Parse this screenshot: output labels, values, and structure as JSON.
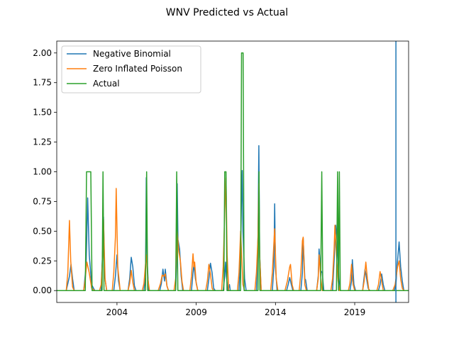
{
  "chart_data": {
    "type": "line",
    "title": "WNV Predicted vs Actual",
    "xlabel": "",
    "ylabel": "",
    "xlim": [
      2000.2,
      2022.4
    ],
    "ylim": [
      -0.1,
      2.1
    ],
    "grid": false,
    "legend_position": "top-left",
    "x_ticks": [
      2004,
      2009,
      2014,
      2019
    ],
    "x_tick_labels": [
      "2004",
      "2009",
      "2014",
      "2019"
    ],
    "y_ticks": [
      0.0,
      0.25,
      0.5,
      0.75,
      1.0,
      1.25,
      1.5,
      1.75,
      2.0
    ],
    "y_tick_labels": [
      "0.00",
      "0.25",
      "0.50",
      "0.75",
      "1.00",
      "1.25",
      "1.50",
      "1.75",
      "2.00"
    ],
    "vline": {
      "x": 2021.6,
      "color": "#1f77b4"
    },
    "series": [
      {
        "name": "Negative Binomial",
        "color": "#1f77b4",
        "points": [
          [
            2000.2,
            0.0
          ],
          [
            2000.8,
            0.0
          ],
          [
            2001.0,
            0.12
          ],
          [
            2001.1,
            0.22
          ],
          [
            2001.2,
            0.1
          ],
          [
            2001.3,
            0.0
          ],
          [
            2001.9,
            0.0
          ],
          [
            2002.05,
            0.2
          ],
          [
            2002.15,
            0.78
          ],
          [
            2002.25,
            0.3
          ],
          [
            2002.4,
            0.05
          ],
          [
            2002.6,
            0.0
          ],
          [
            2003.0,
            0.0
          ],
          [
            2003.1,
            0.35
          ],
          [
            2003.15,
            0.62
          ],
          [
            2003.22,
            0.12
          ],
          [
            2003.35,
            0.0
          ],
          [
            2003.8,
            0.0
          ],
          [
            2003.9,
            0.12
          ],
          [
            2004.0,
            0.3
          ],
          [
            2004.1,
            0.08
          ],
          [
            2004.2,
            0.0
          ],
          [
            2004.7,
            0.0
          ],
          [
            2004.8,
            0.1
          ],
          [
            2004.9,
            0.28
          ],
          [
            2005.0,
            0.2
          ],
          [
            2005.1,
            0.04
          ],
          [
            2005.2,
            0.0
          ],
          [
            2005.7,
            0.0
          ],
          [
            2005.8,
            0.12
          ],
          [
            2005.85,
            0.95
          ],
          [
            2005.9,
            0.25
          ],
          [
            2006.0,
            0.0
          ],
          [
            2006.7,
            0.0
          ],
          [
            2006.8,
            0.06
          ],
          [
            2006.9,
            0.18
          ],
          [
            2007.0,
            0.08
          ],
          [
            2007.05,
            0.18
          ],
          [
            2007.15,
            0.04
          ],
          [
            2007.25,
            0.0
          ],
          [
            2007.7,
            0.0
          ],
          [
            2007.75,
            0.2
          ],
          [
            2007.8,
            0.9
          ],
          [
            2007.85,
            0.43
          ],
          [
            2007.95,
            0.35
          ],
          [
            2008.05,
            0.12
          ],
          [
            2008.15,
            0.0
          ],
          [
            2008.7,
            0.0
          ],
          [
            2008.8,
            0.15
          ],
          [
            2008.85,
            0.22
          ],
          [
            2008.95,
            0.1
          ],
          [
            2009.1,
            0.0
          ],
          [
            2009.7,
            0.0
          ],
          [
            2009.8,
            0.1
          ],
          [
            2009.9,
            0.23
          ],
          [
            2010.0,
            0.15
          ],
          [
            2010.1,
            0.02
          ],
          [
            2010.2,
            0.0
          ],
          [
            2010.7,
            0.0
          ],
          [
            2010.8,
            0.12
          ],
          [
            2010.85,
            0.24
          ],
          [
            2010.9,
            0.12
          ],
          [
            2011.0,
            0.0
          ],
          [
            2011.1,
            0.05
          ],
          [
            2011.15,
            0.0
          ],
          [
            2011.7,
            0.0
          ],
          [
            2011.8,
            0.3
          ],
          [
            2011.85,
            0.72
          ],
          [
            2011.9,
            1.01
          ],
          [
            2011.95,
            0.5
          ],
          [
            2012.05,
            0.1
          ],
          [
            2012.15,
            0.0
          ],
          [
            2012.8,
            0.0
          ],
          [
            2012.9,
            0.45
          ],
          [
            2012.95,
            1.22
          ],
          [
            2013.0,
            0.3
          ],
          [
            2013.1,
            0.0
          ],
          [
            2013.8,
            0.0
          ],
          [
            2013.9,
            0.2
          ],
          [
            2013.95,
            0.73
          ],
          [
            2014.0,
            0.2
          ],
          [
            2014.1,
            0.0
          ],
          [
            2014.7,
            0.0
          ],
          [
            2014.8,
            0.05
          ],
          [
            2014.9,
            0.11
          ],
          [
            2015.0,
            0.05
          ],
          [
            2015.1,
            0.0
          ],
          [
            2015.6,
            0.0
          ],
          [
            2015.7,
            0.15
          ],
          [
            2015.75,
            0.44
          ],
          [
            2015.85,
            0.1
          ],
          [
            2015.9,
            0.09
          ],
          [
            2016.0,
            0.0
          ],
          [
            2016.6,
            0.0
          ],
          [
            2016.7,
            0.12
          ],
          [
            2016.75,
            0.35
          ],
          [
            2016.85,
            0.17
          ],
          [
            2016.95,
            0.15
          ],
          [
            2017.05,
            0.0
          ],
          [
            2017.6,
            0.0
          ],
          [
            2017.7,
            0.25
          ],
          [
            2017.8,
            0.55
          ],
          [
            2017.9,
            0.4
          ],
          [
            2018.0,
            0.1
          ],
          [
            2018.1,
            0.0
          ],
          [
            2018.7,
            0.0
          ],
          [
            2018.8,
            0.08
          ],
          [
            2018.85,
            0.26
          ],
          [
            2018.95,
            0.05
          ],
          [
            2019.05,
            0.0
          ],
          [
            2019.5,
            0.0
          ],
          [
            2019.55,
            0.06
          ],
          [
            2019.65,
            0.18
          ],
          [
            2019.75,
            0.1
          ],
          [
            2019.85,
            0.02
          ],
          [
            2019.95,
            0.0
          ],
          [
            2020.5,
            0.0
          ],
          [
            2020.6,
            0.05
          ],
          [
            2020.7,
            0.14
          ],
          [
            2020.8,
            0.05
          ],
          [
            2020.9,
            0.0
          ],
          [
            2021.5,
            0.0
          ],
          [
            2021.6,
            0.05
          ],
          [
            2021.7,
            0.25
          ],
          [
            2021.8,
            0.41
          ],
          [
            2021.9,
            0.2
          ],
          [
            2022.0,
            0.08
          ],
          [
            2022.1,
            0.0
          ],
          [
            2022.4,
            0.0
          ]
        ]
      },
      {
        "name": "Zero Inflated Poisson",
        "color": "#ff7f0e",
        "points": [
          [
            2000.2,
            0.0
          ],
          [
            2000.8,
            0.0
          ],
          [
            2000.9,
            0.15
          ],
          [
            2001.0,
            0.59
          ],
          [
            2001.08,
            0.25
          ],
          [
            2001.2,
            0.03
          ],
          [
            2001.3,
            0.0
          ],
          [
            2001.9,
            0.0
          ],
          [
            2002.0,
            0.1
          ],
          [
            2002.1,
            0.24
          ],
          [
            2002.25,
            0.15
          ],
          [
            2002.4,
            0.02
          ],
          [
            2002.6,
            0.0
          ],
          [
            2002.9,
            0.0
          ],
          [
            2003.0,
            0.05
          ],
          [
            2003.1,
            0.3
          ],
          [
            2003.15,
            0.6
          ],
          [
            2003.25,
            0.1
          ],
          [
            2003.35,
            0.0
          ],
          [
            2003.7,
            0.0
          ],
          [
            2003.8,
            0.15
          ],
          [
            2003.9,
            0.45
          ],
          [
            2003.95,
            0.86
          ],
          [
            2004.05,
            0.2
          ],
          [
            2004.2,
            0.0
          ],
          [
            2004.7,
            0.0
          ],
          [
            2004.8,
            0.06
          ],
          [
            2004.9,
            0.17
          ],
          [
            2005.0,
            0.07
          ],
          [
            2005.1,
            0.0
          ],
          [
            2005.6,
            0.0
          ],
          [
            2005.7,
            0.06
          ],
          [
            2005.85,
            0.3
          ],
          [
            2005.95,
            0.1
          ],
          [
            2006.05,
            0.0
          ],
          [
            2006.6,
            0.0
          ],
          [
            2006.75,
            0.06
          ],
          [
            2006.85,
            0.13
          ],
          [
            2006.95,
            0.12
          ],
          [
            2007.05,
            0.14
          ],
          [
            2007.15,
            0.04
          ],
          [
            2007.25,
            0.0
          ],
          [
            2007.6,
            0.0
          ],
          [
            2007.7,
            0.1
          ],
          [
            2007.8,
            0.5
          ],
          [
            2007.9,
            0.33
          ],
          [
            2008.0,
            0.25
          ],
          [
            2008.1,
            0.08
          ],
          [
            2008.2,
            0.0
          ],
          [
            2008.6,
            0.0
          ],
          [
            2008.7,
            0.12
          ],
          [
            2008.8,
            0.31
          ],
          [
            2008.85,
            0.2
          ],
          [
            2008.9,
            0.24
          ],
          [
            2009.0,
            0.06
          ],
          [
            2009.1,
            0.0
          ],
          [
            2009.6,
            0.0
          ],
          [
            2009.7,
            0.08
          ],
          [
            2009.8,
            0.22
          ],
          [
            2009.9,
            0.14
          ],
          [
            2010.0,
            0.02
          ],
          [
            2010.1,
            0.0
          ],
          [
            2010.6,
            0.0
          ],
          [
            2010.7,
            0.2
          ],
          [
            2010.8,
            0.65
          ],
          [
            2010.88,
            0.95
          ],
          [
            2010.95,
            0.3
          ],
          [
            2011.05,
            0.0
          ],
          [
            2011.6,
            0.0
          ],
          [
            2011.7,
            0.15
          ],
          [
            2011.8,
            0.5
          ],
          [
            2011.88,
            0.25
          ],
          [
            2011.95,
            0.05
          ],
          [
            2012.05,
            0.0
          ],
          [
            2012.7,
            0.0
          ],
          [
            2012.8,
            0.15
          ],
          [
            2012.9,
            0.45
          ],
          [
            2012.95,
            0.9
          ],
          [
            2013.0,
            0.3
          ],
          [
            2013.1,
            0.0
          ],
          [
            2013.7,
            0.0
          ],
          [
            2013.8,
            0.15
          ],
          [
            2013.9,
            0.4
          ],
          [
            2013.95,
            0.52
          ],
          [
            2014.05,
            0.1
          ],
          [
            2014.15,
            0.0
          ],
          [
            2014.6,
            0.0
          ],
          [
            2014.75,
            0.08
          ],
          [
            2014.9,
            0.2
          ],
          [
            2014.95,
            0.22
          ],
          [
            2015.05,
            0.05
          ],
          [
            2015.15,
            0.0
          ],
          [
            2015.5,
            0.0
          ],
          [
            2015.6,
            0.15
          ],
          [
            2015.7,
            0.42
          ],
          [
            2015.75,
            0.45
          ],
          [
            2015.85,
            0.05
          ],
          [
            2015.95,
            0.0
          ],
          [
            2016.6,
            0.0
          ],
          [
            2016.7,
            0.1
          ],
          [
            2016.75,
            0.3
          ],
          [
            2016.85,
            0.12
          ],
          [
            2016.95,
            0.0
          ],
          [
            2017.5,
            0.0
          ],
          [
            2017.6,
            0.1
          ],
          [
            2017.7,
            0.35
          ],
          [
            2017.75,
            0.55
          ],
          [
            2017.85,
            0.3
          ],
          [
            2017.95,
            0.08
          ],
          [
            2018.05,
            0.0
          ],
          [
            2018.6,
            0.0
          ],
          [
            2018.7,
            0.06
          ],
          [
            2018.8,
            0.22
          ],
          [
            2018.9,
            0.05
          ],
          [
            2019.0,
            0.0
          ],
          [
            2019.5,
            0.0
          ],
          [
            2019.6,
            0.08
          ],
          [
            2019.7,
            0.24
          ],
          [
            2019.8,
            0.1
          ],
          [
            2019.9,
            0.0
          ],
          [
            2020.4,
            0.0
          ],
          [
            2020.5,
            0.05
          ],
          [
            2020.6,
            0.16
          ],
          [
            2020.7,
            0.08
          ],
          [
            2020.8,
            0.0
          ],
          [
            2021.4,
            0.0
          ],
          [
            2021.55,
            0.05
          ],
          [
            2021.7,
            0.2
          ],
          [
            2021.8,
            0.25
          ],
          [
            2021.9,
            0.1
          ],
          [
            2022.0,
            0.02
          ],
          [
            2022.1,
            0.0
          ],
          [
            2022.4,
            0.0
          ]
        ]
      },
      {
        "name": "Actual",
        "color": "#2ca02c",
        "points": [
          [
            2000.2,
            0.0
          ],
          [
            2002.0,
            0.0
          ],
          [
            2002.08,
            1.0
          ],
          [
            2002.35,
            1.0
          ],
          [
            2002.43,
            0.0
          ],
          [
            2003.06,
            0.0
          ],
          [
            2003.12,
            1.0
          ],
          [
            2003.18,
            0.0
          ],
          [
            2005.8,
            0.0
          ],
          [
            2005.87,
            1.0
          ],
          [
            2005.94,
            0.0
          ],
          [
            2007.7,
            0.0
          ],
          [
            2007.77,
            1.0
          ],
          [
            2007.84,
            0.0
          ],
          [
            2010.74,
            0.0
          ],
          [
            2010.8,
            1.0
          ],
          [
            2010.88,
            1.0
          ],
          [
            2010.94,
            0.0
          ],
          [
            2011.8,
            0.0
          ],
          [
            2011.86,
            2.0
          ],
          [
            2011.96,
            2.0
          ],
          [
            2012.02,
            0.0
          ],
          [
            2012.9,
            0.0
          ],
          [
            2012.96,
            1.0
          ],
          [
            2013.02,
            0.0
          ],
          [
            2016.85,
            0.0
          ],
          [
            2016.92,
            1.0
          ],
          [
            2016.99,
            0.0
          ],
          [
            2017.85,
            0.0
          ],
          [
            2017.92,
            1.0
          ],
          [
            2017.98,
            0.0
          ],
          [
            2018.03,
            1.0
          ],
          [
            2018.09,
            0.0
          ],
          [
            2022.4,
            0.0
          ]
        ]
      }
    ]
  }
}
